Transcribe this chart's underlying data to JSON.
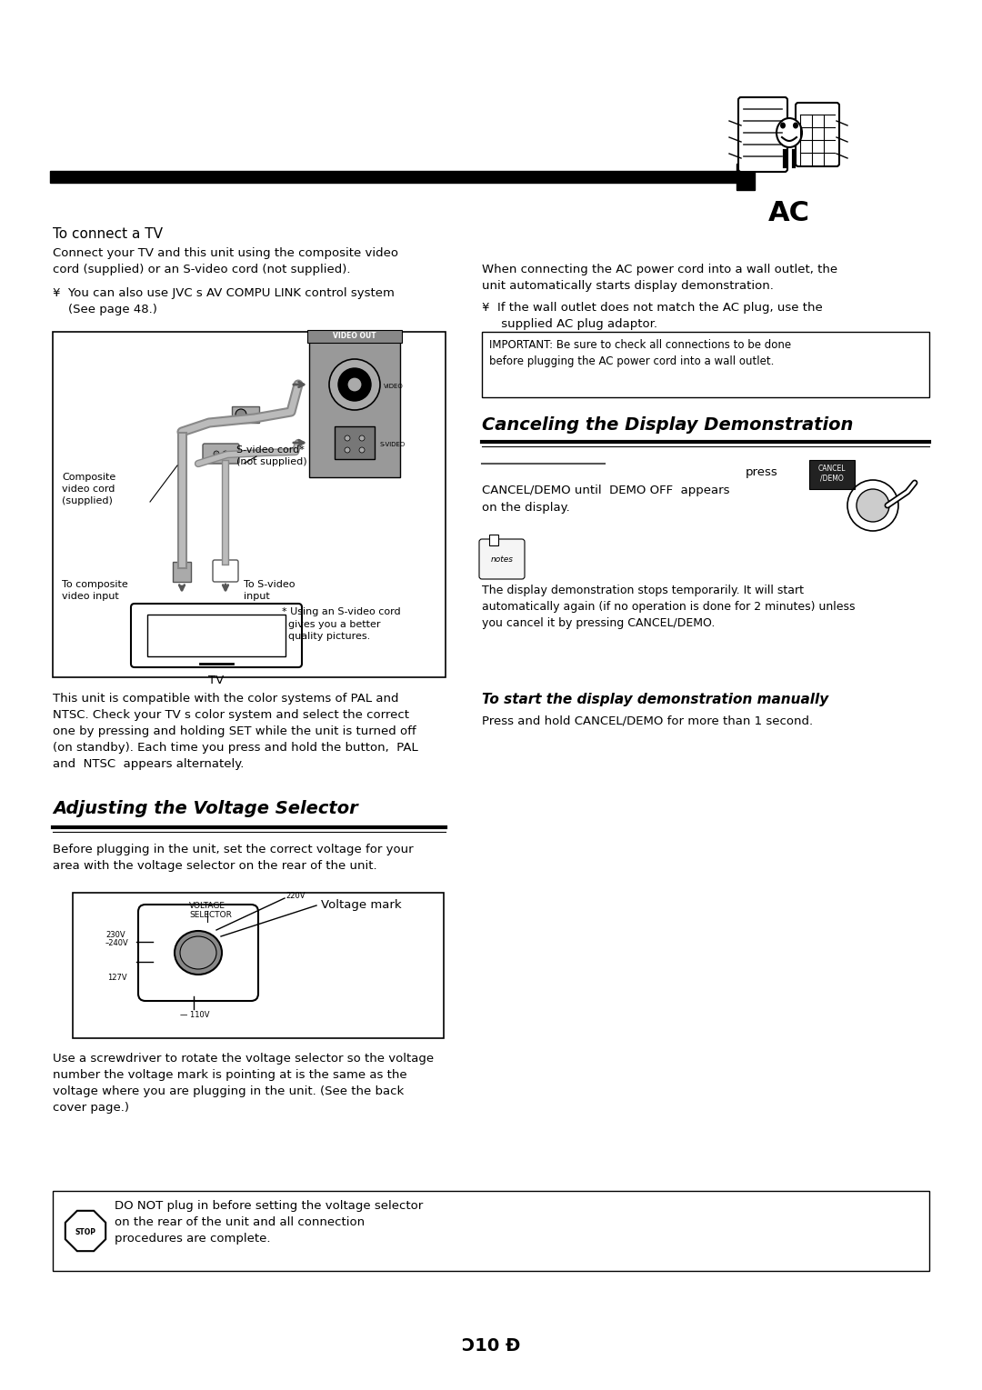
{
  "bg_color": "#ffffff",
  "page_width": 10.8,
  "page_height": 15.29,
  "ac_label": "AC",
  "to_connect_tv_heading": "To connect a TV",
  "left_col_text1": "Connect your TV and this unit using the composite video\ncord (supplied) or an S-video cord (not supplied).",
  "left_col_text2a": "¥  You can also use JVC s AV COMPU LINK control system",
  "left_col_text2b": "    (See page 48.)",
  "right_col_text1": "When connecting the AC power cord into a wall outlet, the\nunit automatically starts display demonstration.",
  "right_col_text2a": "¥  If the wall outlet does not match the AC plug, use the",
  "right_col_text2b": "     supplied AC plug adaptor.",
  "important_box_text": "IMPORTANT: Be sure to check all connections to be done\nbefore plugging the AC power cord into a wall outlet.",
  "cancel_demo_heading": "Canceling the Display Demonstration",
  "cancel_demo_notes_text": "The display demonstration stops temporarily. It will start\nautomatically again (if no operation is done for 2 minutes) unless\nyou cancel it by pressing CANCEL/DEMO.",
  "to_start_demo_heading": "To start the display demonstration manually",
  "to_start_demo_text": "Press and hold CANCEL/DEMO for more than 1 second.",
  "pal_ntsc_text": "This unit is compatible with the color systems of PAL and\nNTSC. Check your TV s color system and select the correct\none by pressing and holding SET while the unit is turned off\n(on standby). Each time you press and hold the button,  PAL\nand  NTSC  appears alternately.",
  "voltage_heading": "Adjusting the Voltage Selector",
  "voltage_text1": "Before plugging in the unit, set the correct voltage for your\narea with the voltage selector on the rear of the unit.",
  "voltage_diagram_label": "Voltage mark",
  "voltage_selector_label": "VOLTAGE\nSELECTOR",
  "voltage_text2": "Use a screwdriver to rotate the voltage selector so the voltage\nnumber the voltage mark is pointing at is the same as the\nvoltage where you are plugging in the unit. (See the back\ncover page.)",
  "caution_text": "DO NOT plug in before setting the voltage selector\non the rear of the unit and all connection\nprocedures are complete.",
  "page_number": "Ɔ10 Đ",
  "composite_label": "Composite\nvideo cord\n(supplied)",
  "svideo_label": "S-video cord*\n(not supplied)",
  "composite_input_label": "To composite\nvideo input",
  "svideo_input_label": "To S-video\ninput",
  "tv_label": "TV",
  "svideo_note": "* Using an S-video cord\n  gives you a better\n  quality pictures.",
  "cancel_label": "CANCEL\n/DEMO",
  "press_text": "press",
  "cancel_demo_text": "CANCEL/DEMO until  DEMO OFF  appears\non the display."
}
